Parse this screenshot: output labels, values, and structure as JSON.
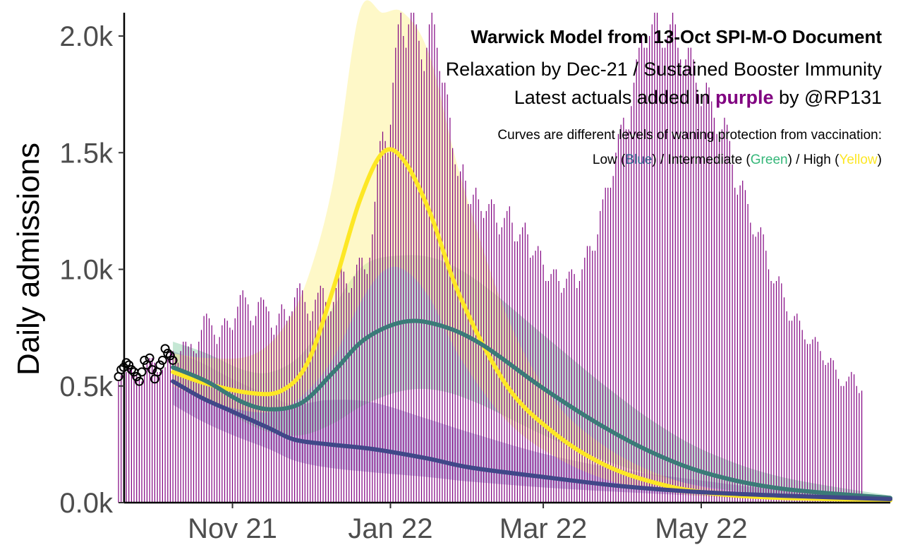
{
  "chart_data": {
    "type": "line",
    "title": "Warwick Model from 13-Oct SPI-M-O Document",
    "subtitle": "Relaxation by Dec-21 / Sustained Booster Immunity",
    "caption_prefix": "Latest actuals added in",
    "caption_highlight": "purple",
    "caption_suffix": "by @RP131",
    "note_line1": "Curves are different levels of waning protection from vaccination:",
    "note_line2": {
      "low_prefix": "Low (",
      "low_word": "Blue",
      "mid_prefix": ") / Intermediate (",
      "mid_word": "Green",
      "high_prefix": ") / High (",
      "high_word": "Yellow",
      "end": ")"
    },
    "ylabel": "Daily admissions",
    "xlabel": "",
    "ylim": [
      0,
      2100
    ],
    "xlim": [
      "2021-09-18",
      "2022-07-13"
    ],
    "y_ticks": [
      {
        "value": 0,
        "label": "0.0k"
      },
      {
        "value": 500,
        "label": "0.5k"
      },
      {
        "value": 1000,
        "label": "1.0k"
      },
      {
        "value": 1500,
        "label": "1.5k"
      },
      {
        "value": 2000,
        "label": "2.0k"
      }
    ],
    "x_ticks": [
      {
        "date": "2021-11-01",
        "label": "Nov 21"
      },
      {
        "date": "2022-01-01",
        "label": "Jan 22"
      },
      {
        "date": "2022-03-01",
        "label": "Mar 22"
      },
      {
        "date": "2022-05-01",
        "label": "May 22"
      }
    ],
    "grid": false,
    "colors": {
      "actuals": "#800080",
      "low": "#404788",
      "intermediate": "#3b7a78",
      "high": "#fde725",
      "highlight": "#800080",
      "low_text": "#31688e",
      "mid_text": "#35b779",
      "high_text": "#fde725"
    },
    "observed_points": {
      "dates": [
        "2021-09-18",
        "2021-09-19",
        "2021-09-20",
        "2021-09-21",
        "2021-09-22",
        "2021-09-23",
        "2021-09-24",
        "2021-09-25",
        "2021-09-26",
        "2021-09-27",
        "2021-09-28",
        "2021-09-29",
        "2021-09-30",
        "2021-10-01",
        "2021-10-02",
        "2021-10-03",
        "2021-10-04",
        "2021-10-05",
        "2021-10-06",
        "2021-10-07",
        "2021-10-08",
        "2021-10-09"
      ],
      "values": [
        540,
        570,
        580,
        600,
        590,
        570,
        560,
        540,
        520,
        560,
        610,
        590,
        620,
        570,
        530,
        560,
        590,
        610,
        660,
        640,
        630,
        610
      ]
    },
    "series": [
      {
        "name": "Low",
        "dates": [
          "2021-10-09",
          "2021-10-20",
          "2021-11-01",
          "2021-11-15",
          "2021-11-25",
          "2021-12-08",
          "2021-12-25",
          "2022-01-15",
          "2022-02-01",
          "2022-03-01",
          "2022-04-01",
          "2022-05-01",
          "2022-06-01",
          "2022-07-13"
        ],
        "values": [
          520,
          450,
          390,
          320,
          270,
          250,
          230,
          190,
          150,
          110,
          70,
          45,
          30,
          15
        ],
        "lower": [
          420,
          350,
          290,
          230,
          180,
          150,
          130,
          110,
          90,
          65,
          45,
          30,
          20,
          10
        ],
        "upper": [
          650,
          600,
          530,
          460,
          420,
          440,
          430,
          360,
          300,
          210,
          140,
          95,
          55,
          30
        ]
      },
      {
        "name": "Intermediate",
        "dates": [
          "2021-10-09",
          "2021-10-22",
          "2021-11-05",
          "2021-11-16",
          "2021-11-28",
          "2021-12-10",
          "2021-12-22",
          "2022-01-06",
          "2022-01-20",
          "2022-02-05",
          "2022-03-01",
          "2022-03-25",
          "2022-04-15",
          "2022-05-05",
          "2022-06-01",
          "2022-07-13"
        ],
        "values": [
          580,
          520,
          430,
          400,
          430,
          560,
          700,
          775,
          760,
          680,
          490,
          320,
          200,
          120,
          60,
          20
        ],
        "lower": [
          520,
          450,
          350,
          300,
          290,
          340,
          420,
          480,
          480,
          420,
          290,
          180,
          110,
          65,
          30,
          10
        ],
        "upper": [
          690,
          640,
          570,
          560,
          640,
          840,
          1020,
          1060,
          1040,
          940,
          720,
          500,
          330,
          210,
          110,
          30
        ]
      },
      {
        "name": "High",
        "dates": [
          "2021-10-09",
          "2021-10-22",
          "2021-11-08",
          "2021-11-20",
          "2021-11-30",
          "2021-12-10",
          "2021-12-20",
          "2021-12-29",
          "2022-01-06",
          "2022-01-16",
          "2022-01-28",
          "2022-02-15",
          "2022-03-05",
          "2022-03-25",
          "2022-04-15",
          "2022-05-05",
          "2022-06-01",
          "2022-07-13"
        ],
        "values": [
          560,
          510,
          470,
          480,
          600,
          920,
          1290,
          1500,
          1470,
          1250,
          880,
          500,
          300,
          160,
          80,
          40,
          20,
          10
        ],
        "lower": [
          500,
          440,
          390,
          400,
          480,
          620,
          850,
          990,
          1000,
          880,
          620,
          350,
          200,
          100,
          50,
          25,
          12,
          5
        ],
        "upper": [
          640,
          620,
          630,
          740,
          960,
          1380,
          2100,
          2100,
          2100,
          1920,
          1400,
          800,
          440,
          240,
          120,
          60,
          30,
          15
        ]
      }
    ],
    "actuals": {
      "start": "2021-09-18",
      "values": [
        520,
        545,
        555,
        560,
        580,
        580,
        560,
        550,
        540,
        520,
        550,
        600,
        620,
        620,
        600,
        560,
        560,
        570,
        580,
        620,
        650,
        650,
        620,
        600,
        650,
        690,
        690,
        670,
        680,
        650,
        640,
        690,
        740,
        800,
        810,
        790,
        760,
        720,
        680,
        710,
        760,
        790,
        780,
        750,
        740,
        790,
        840,
        890,
        910,
        880,
        850,
        780,
        760,
        800,
        860,
        880,
        870,
        840,
        820,
        750,
        720,
        760,
        810,
        850,
        830,
        780,
        800,
        820,
        880,
        920,
        940,
        910,
        860,
        810,
        780,
        820,
        870,
        900,
        930,
        920,
        860,
        800,
        820,
        860,
        920,
        980,
        1010,
        990,
        940,
        900,
        920,
        970,
        1020,
        1050,
        1050,
        1000,
        980,
        1050,
        1150,
        1290,
        1450,
        1550,
        1590,
        1550,
        1500,
        1620,
        1800,
        1950,
        2050,
        2100,
        2000,
        1950,
        2050,
        2100,
        2100,
        2050,
        1980,
        1900,
        1850,
        1950,
        2050,
        2100,
        2050,
        1950,
        1850,
        1800,
        1800,
        1750,
        1650,
        1520,
        1450,
        1400,
        1420,
        1450,
        1380,
        1280,
        1280,
        1320,
        1350,
        1300,
        1250,
        1220,
        1250,
        1280,
        1300,
        1280,
        1200,
        1150,
        1180,
        1220,
        1250,
        1270,
        1200,
        1120,
        1120,
        1150,
        1180,
        1200,
        1150,
        1050,
        1060,
        1080,
        1100,
        1080,
        1020,
        950,
        950,
        980,
        1000,
        1000,
        950,
        900,
        920,
        960,
        990,
        1000,
        980,
        920,
        950,
        1000,
        1050,
        1100,
        1100,
        1080,
        1080,
        1150,
        1250,
        1300,
        1350,
        1350,
        1350,
        1400,
        1500,
        1580,
        1620,
        1650,
        1600,
        1600,
        1700,
        1800,
        1900,
        1950,
        2000,
        1950,
        1950,
        2000,
        2050,
        2100,
        2100,
        2000,
        1950,
        1950,
        2000,
        2050,
        2100,
        2050,
        1950,
        1900,
        1850,
        1900,
        1950,
        1950,
        1900,
        1800,
        1750,
        1700,
        1750,
        1800,
        1780,
        1720,
        1650,
        1580,
        1560,
        1600,
        1650,
        1620,
        1550,
        1450,
        1350,
        1320,
        1360,
        1380,
        1340,
        1280,
        1200,
        1150,
        1140,
        1160,
        1180,
        1150,
        1080,
        1000,
        950,
        940,
        950,
        970,
        940,
        880,
        820,
        780,
        780,
        800,
        810,
        780,
        740,
        700,
        680,
        680,
        700,
        710,
        690,
        650,
        610,
        590,
        600,
        620,
        610,
        570,
        530,
        500,
        500,
        520,
        540,
        560,
        550,
        500,
        470,
        480
      ]
    }
  }
}
